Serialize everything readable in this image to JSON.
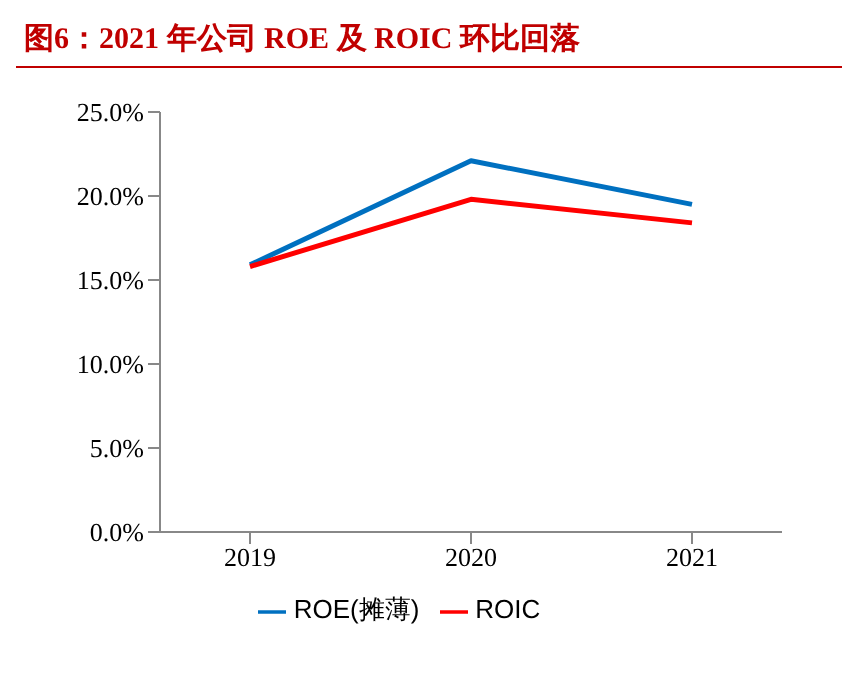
{
  "chart_data": {
    "type": "line",
    "title": "图6：2021 年公司 ROE 及 ROIC 环比回落",
    "categories": [
      "2019",
      "2020",
      "2021"
    ],
    "series": [
      {
        "name": "ROE(摊薄)",
        "color": "#0070c0",
        "values": [
          15.9,
          22.1,
          19.5
        ]
      },
      {
        "name": "ROIC",
        "color": "#ff0000",
        "values": [
          15.8,
          19.8,
          18.4
        ]
      }
    ],
    "ylim": [
      0,
      25
    ],
    "yticks": [
      {
        "value": 0,
        "label": "0.0%"
      },
      {
        "value": 5,
        "label": "5.0%"
      },
      {
        "value": 10,
        "label": "10.0%"
      },
      {
        "value": 15,
        "label": "15.0%"
      },
      {
        "value": 20,
        "label": "20.0%"
      },
      {
        "value": 25,
        "label": "25.0%"
      }
    ],
    "grid": false,
    "legend": "bottom",
    "marker": "none",
    "line_style": "solid"
  }
}
